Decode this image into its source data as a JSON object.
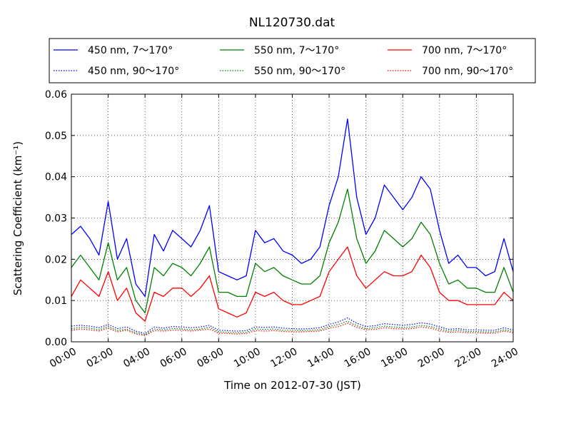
{
  "chart_data": {
    "type": "line",
    "title": "NL120730.dat",
    "xlabel": "Time on 2012-07-30 (JST)",
    "ylabel": "Scattering Coefficient (km⁻¹)",
    "xlim": [
      "00:00",
      "24:00"
    ],
    "ylim": [
      0,
      0.06
    ],
    "grid": true,
    "legend_position": "top",
    "x_ticks": [
      "00:00",
      "02:00",
      "04:00",
      "06:00",
      "08:00",
      "10:00",
      "12:00",
      "14:00",
      "16:00",
      "18:00",
      "20:00",
      "22:00",
      "24:00"
    ],
    "y_ticks": [
      "0.00",
      "0.01",
      "0.02",
      "0.03",
      "0.04",
      "0.05",
      "0.06"
    ],
    "x": [
      "00:00",
      "00:30",
      "01:00",
      "01:30",
      "02:00",
      "02:30",
      "03:00",
      "03:30",
      "04:00",
      "04:30",
      "05:00",
      "05:30",
      "06:00",
      "06:30",
      "07:00",
      "07:30",
      "08:00",
      "08:30",
      "09:00",
      "09:30",
      "10:00",
      "10:30",
      "11:00",
      "11:30",
      "12:00",
      "12:30",
      "13:00",
      "13:30",
      "14:00",
      "14:30",
      "15:00",
      "15:30",
      "16:00",
      "16:30",
      "17:00",
      "17:30",
      "18:00",
      "18:30",
      "19:00",
      "19:30",
      "20:00",
      "20:30",
      "21:00",
      "21:30",
      "22:00",
      "22:30",
      "23:00",
      "23:30",
      "24:00"
    ],
    "series": [
      {
        "name": "450 nm, 7～170°",
        "color": "#0000ff",
        "style": "solid",
        "values": [
          0.026,
          0.028,
          0.025,
          0.021,
          0.034,
          0.02,
          0.025,
          0.014,
          0.011,
          0.026,
          0.022,
          0.027,
          0.025,
          0.023,
          0.027,
          0.033,
          0.017,
          0.016,
          0.015,
          0.016,
          0.027,
          0.024,
          0.025,
          0.022,
          0.021,
          0.019,
          0.02,
          0.023,
          0.033,
          0.04,
          0.054,
          0.035,
          0.026,
          0.03,
          0.038,
          0.035,
          0.032,
          0.035,
          0.04,
          0.037,
          0.027,
          0.019,
          0.021,
          0.018,
          0.018,
          0.016,
          0.017,
          0.025,
          0.017
        ]
      },
      {
        "name": "550 nm, 7～170°",
        "color": "#008000",
        "style": "solid",
        "values": [
          0.018,
          0.021,
          0.018,
          0.015,
          0.024,
          0.015,
          0.018,
          0.01,
          0.007,
          0.018,
          0.016,
          0.019,
          0.018,
          0.016,
          0.019,
          0.023,
          0.012,
          0.012,
          0.011,
          0.011,
          0.019,
          0.017,
          0.018,
          0.016,
          0.015,
          0.014,
          0.014,
          0.016,
          0.024,
          0.029,
          0.037,
          0.025,
          0.019,
          0.022,
          0.027,
          0.025,
          0.023,
          0.025,
          0.029,
          0.026,
          0.019,
          0.014,
          0.015,
          0.013,
          0.013,
          0.012,
          0.012,
          0.018,
          0.012
        ]
      },
      {
        "name": "700 nm, 7～170°",
        "color": "#ff0000",
        "style": "solid",
        "values": [
          0.011,
          0.015,
          0.013,
          0.011,
          0.017,
          0.01,
          0.013,
          0.007,
          0.005,
          0.012,
          0.011,
          0.013,
          0.013,
          0.011,
          0.013,
          0.016,
          0.008,
          0.007,
          0.006,
          0.007,
          0.012,
          0.011,
          0.012,
          0.01,
          0.009,
          0.009,
          0.01,
          0.011,
          0.017,
          0.02,
          0.023,
          0.016,
          0.013,
          0.015,
          0.017,
          0.016,
          0.016,
          0.017,
          0.021,
          0.018,
          0.012,
          0.01,
          0.01,
          0.009,
          0.009,
          0.009,
          0.009,
          0.012,
          0.01
        ]
      },
      {
        "name": "450 nm, 90～170°",
        "color": "#0000ff",
        "style": "dotted",
        "values": [
          0.0038,
          0.004,
          0.0038,
          0.0034,
          0.0042,
          0.0032,
          0.0036,
          0.0026,
          0.002,
          0.0036,
          0.0033,
          0.0037,
          0.0036,
          0.0034,
          0.0036,
          0.004,
          0.0028,
          0.0027,
          0.0026,
          0.0027,
          0.0036,
          0.0035,
          0.0036,
          0.0033,
          0.0032,
          0.0031,
          0.0032,
          0.0034,
          0.0042,
          0.0048,
          0.0058,
          0.0045,
          0.0037,
          0.0039,
          0.0044,
          0.0042,
          0.004,
          0.0042,
          0.0046,
          0.0043,
          0.0036,
          0.003,
          0.0032,
          0.0029,
          0.0029,
          0.0028,
          0.0028,
          0.0034,
          0.0029
        ]
      },
      {
        "name": "550 nm, 90～170°",
        "color": "#008000",
        "style": "dotted",
        "values": [
          0.0032,
          0.0035,
          0.0033,
          0.0029,
          0.0037,
          0.0027,
          0.0031,
          0.0022,
          0.0017,
          0.0031,
          0.0029,
          0.0032,
          0.0031,
          0.0029,
          0.0031,
          0.0035,
          0.0024,
          0.0023,
          0.0022,
          0.0023,
          0.0031,
          0.003,
          0.0031,
          0.0028,
          0.0028,
          0.0027,
          0.0028,
          0.0029,
          0.0037,
          0.0042,
          0.005,
          0.0039,
          0.0032,
          0.0034,
          0.0038,
          0.0036,
          0.0035,
          0.0036,
          0.004,
          0.0037,
          0.0031,
          0.0026,
          0.0028,
          0.0025,
          0.0025,
          0.0024,
          0.0024,
          0.0029,
          0.0025
        ]
      },
      {
        "name": "700 nm, 90～170°",
        "color": "#ff0000",
        "style": "dotted",
        "values": [
          0.0028,
          0.0031,
          0.0029,
          0.0026,
          0.0033,
          0.0024,
          0.0028,
          0.0019,
          0.0015,
          0.0027,
          0.0026,
          0.0028,
          0.0028,
          0.0026,
          0.0028,
          0.0031,
          0.0021,
          0.002,
          0.0019,
          0.002,
          0.0027,
          0.0026,
          0.0027,
          0.0025,
          0.0024,
          0.0024,
          0.0025,
          0.0026,
          0.0033,
          0.0037,
          0.0045,
          0.0035,
          0.0029,
          0.003,
          0.0034,
          0.0032,
          0.0031,
          0.0032,
          0.0036,
          0.0033,
          0.0027,
          0.0023,
          0.0024,
          0.0022,
          0.0022,
          0.0021,
          0.0021,
          0.0026,
          0.0022
        ]
      }
    ]
  }
}
